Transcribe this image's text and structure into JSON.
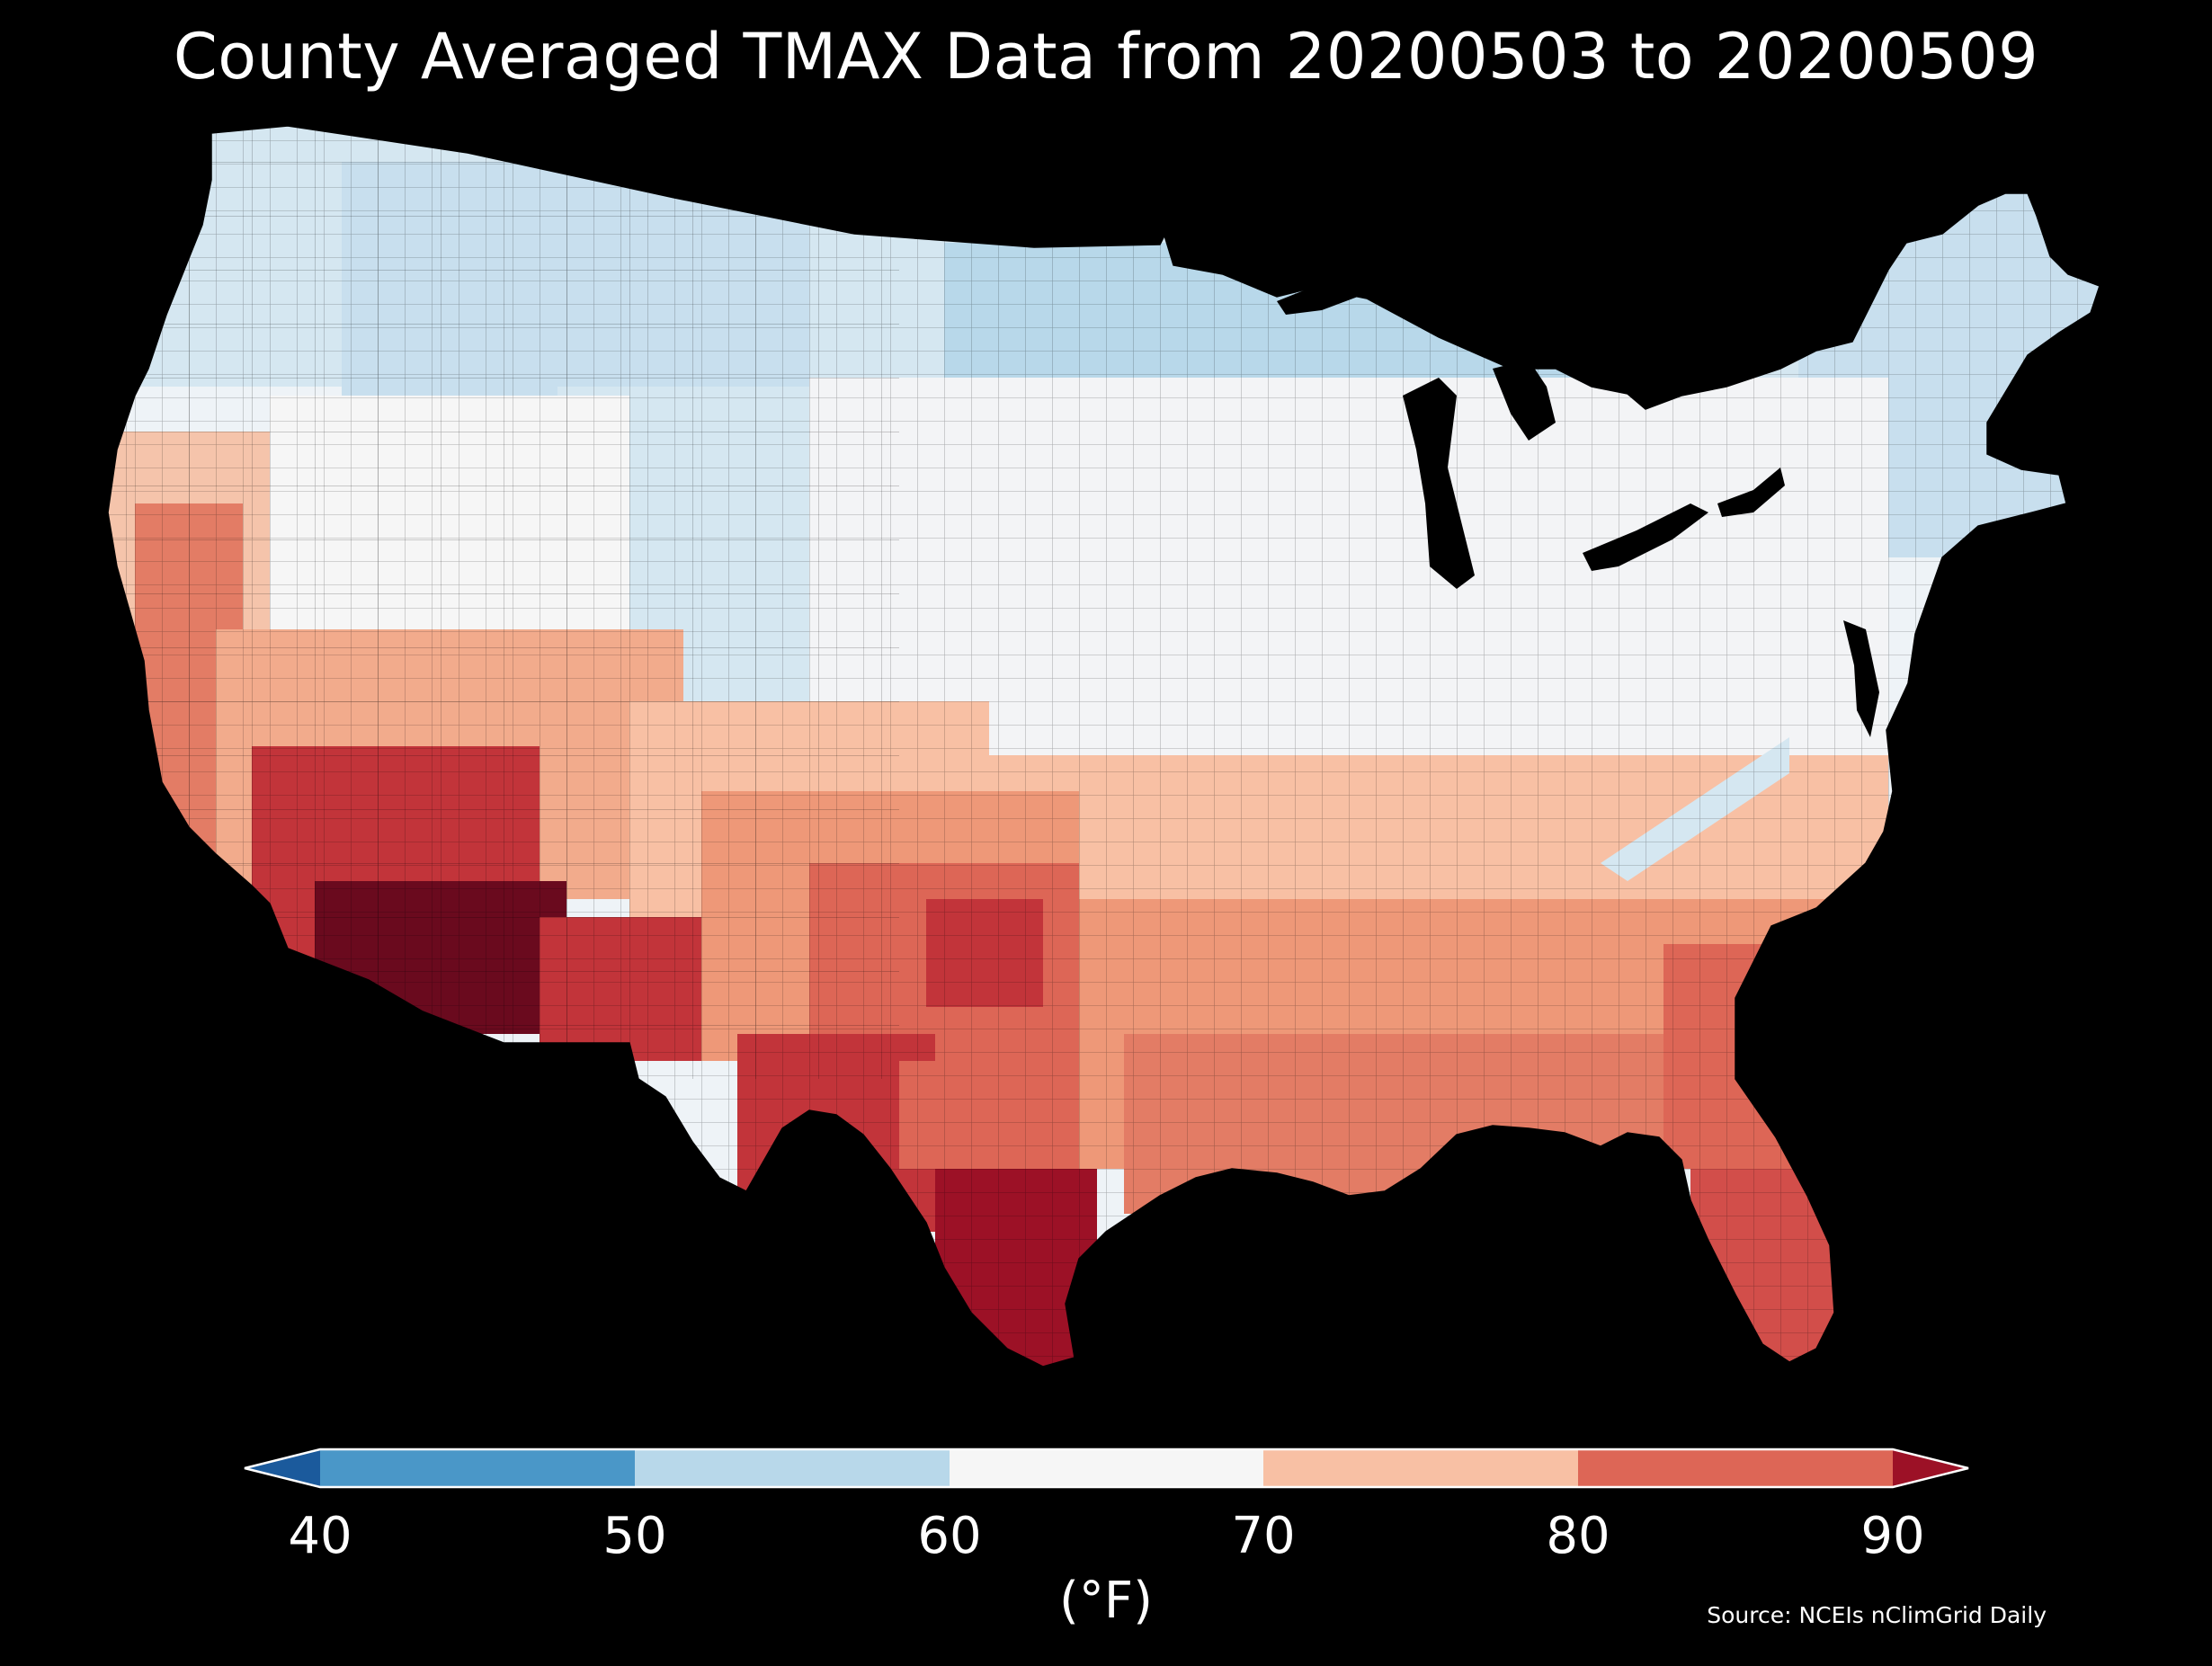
{
  "title": "County Averaged TMAX Data from 20200503 to 20200509",
  "colorbar": {
    "unit": "(°F)",
    "ticks": [
      "40",
      "50",
      "60",
      "70",
      "80",
      "90"
    ],
    "bins": [
      {
        "from": "<40",
        "color": "#1b5a9c"
      },
      {
        "from": 40,
        "to": 50,
        "color": "#4a97c8"
      },
      {
        "from": 50,
        "to": 60,
        "color": "#b8d8ea"
      },
      {
        "from": 60,
        "to": 70,
        "color": "#f6f6f6"
      },
      {
        "from": 70,
        "to": 80,
        "color": "#f8c0a4"
      },
      {
        "from": 80,
        "to": 90,
        "color": "#dd6656"
      },
      {
        "from": ">90",
        "color": "#9c1126"
      }
    ]
  },
  "source": "Source: NCEIs nClimGrid Daily",
  "map": {
    "region": "contiguous-united-states",
    "palette": [
      "#b8d8ea",
      "#d5e7f1",
      "#eef3f7",
      "#f6f6f6",
      "#f8c0a4",
      "#ee9878",
      "#dd6656",
      "#c2343a",
      "#9c1126",
      "#6a0a1e"
    ]
  }
}
